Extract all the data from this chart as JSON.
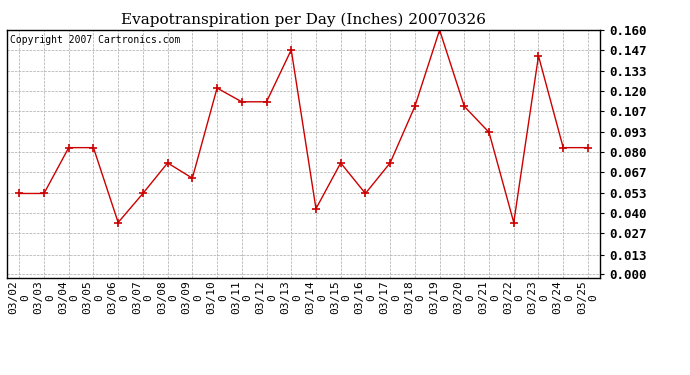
{
  "title": "Evapotranspiration per Day (Inches) 20070326",
  "copyright_text": "Copyright 2007 Cartronics.com",
  "dates": [
    "03/02\n0",
    "03/03\n0",
    "03/04\n0",
    "03/05\n0",
    "03/06\n0",
    "03/07\n0",
    "03/08\n0",
    "03/09\n0",
    "03/10\n0",
    "03/11\n0",
    "03/12\n0",
    "03/13\n0",
    "03/14\n0",
    "03/15\n0",
    "03/16\n0",
    "03/17\n0",
    "03/18\n0",
    "03/19\n0",
    "03/20\n0",
    "03/21\n0",
    "03/22\n0",
    "03/23\n0",
    "03/24\n0",
    "03/25\n0"
  ],
  "values": [
    0.053,
    0.053,
    0.083,
    0.083,
    0.034,
    0.053,
    0.073,
    0.063,
    0.122,
    0.113,
    0.113,
    0.147,
    0.043,
    0.073,
    0.053,
    0.073,
    0.11,
    0.16,
    0.11,
    0.093,
    0.034,
    0.143,
    0.083,
    0.083
  ],
  "yticks": [
    0.0,
    0.013,
    0.027,
    0.04,
    0.053,
    0.067,
    0.08,
    0.093,
    0.107,
    0.12,
    0.133,
    0.147,
    0.16
  ],
  "line_color": "#cc0000",
  "marker": "+",
  "marker_size": 6,
  "marker_color": "#cc0000",
  "bg_color": "#ffffff",
  "grid_color": "#aaaaaa",
  "ylim": [
    -0.002,
    0.16
  ],
  "title_fontsize": 11,
  "copyright_fontsize": 7,
  "tick_fontsize": 8,
  "ytick_fontsize": 9
}
